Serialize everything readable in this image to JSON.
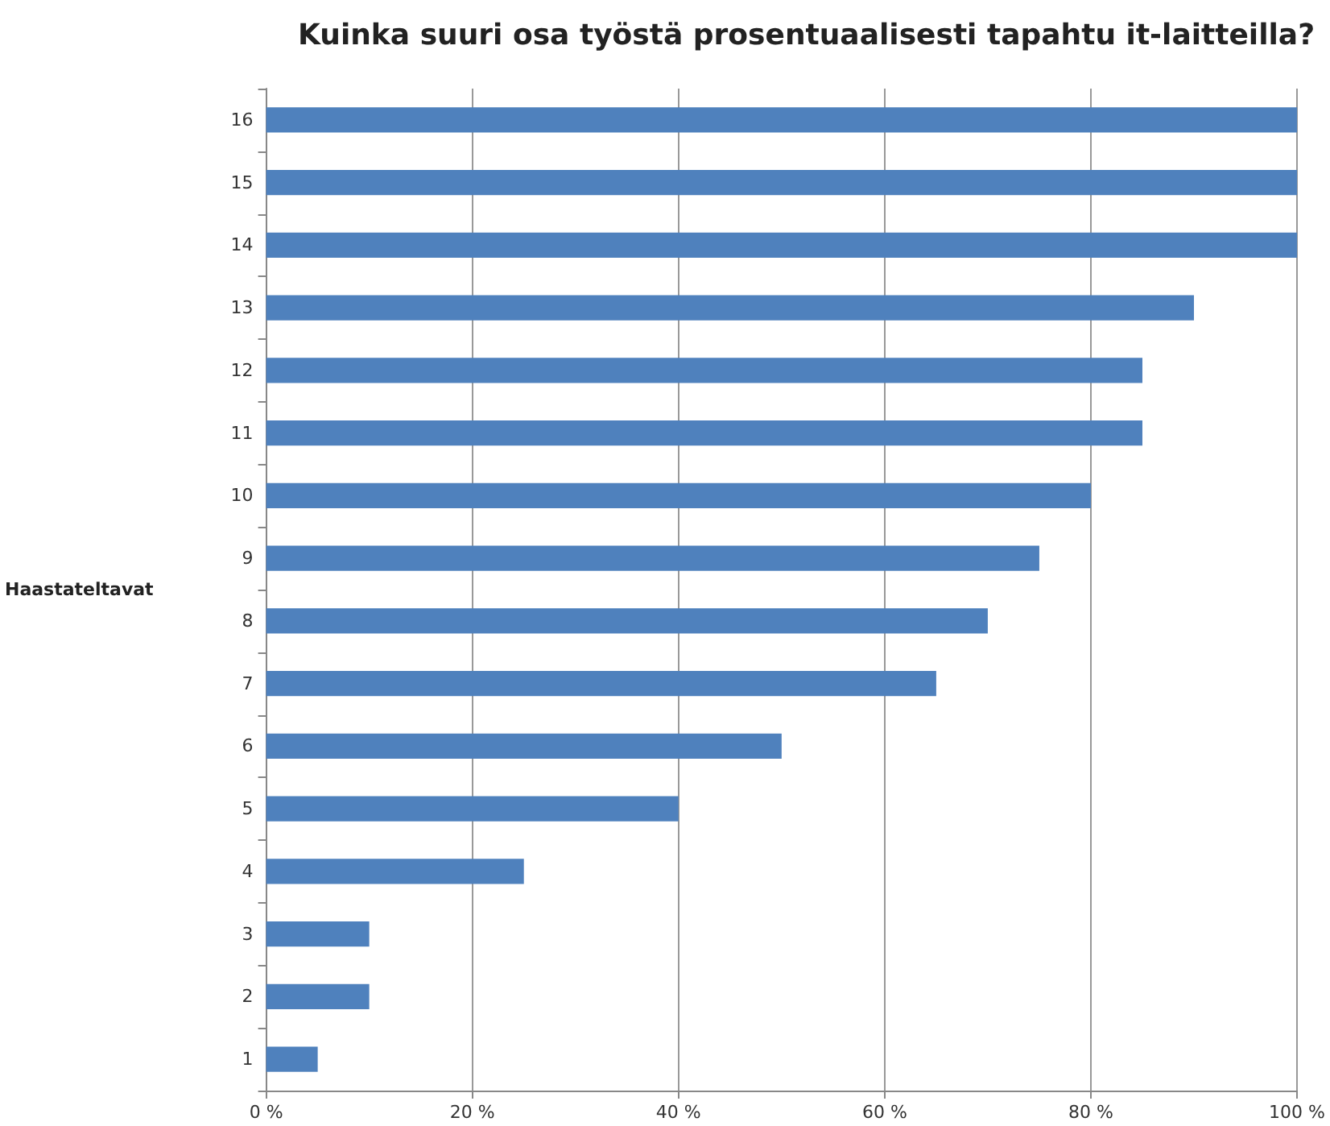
{
  "chart_data": {
    "type": "bar",
    "orientation": "horizontal",
    "title": "Kuinka suuri osa työstä prosentuaalisesti tapahtu it-laitteilla?",
    "ylabel": "Haastateltavat",
    "categories": [
      "16",
      "15",
      "14",
      "13",
      "12",
      "11",
      "10",
      "9",
      "8",
      "7",
      "6",
      "5",
      "4",
      "3",
      "2",
      "1"
    ],
    "values": [
      100,
      100,
      100,
      90,
      85,
      85,
      80,
      75,
      70,
      65,
      50,
      40,
      25,
      10,
      10,
      5
    ],
    "color": "#4f81bd",
    "xlim": [
      0,
      100
    ],
    "xticks": [
      {
        "value": 0,
        "label": "0 %"
      },
      {
        "value": 20,
        "label": "20 %"
      },
      {
        "value": 40,
        "label": "40 %"
      },
      {
        "value": 60,
        "label": "60 %"
      },
      {
        "value": 80,
        "label": "80 %"
      },
      {
        "value": 100,
        "label": "100 %"
      }
    ],
    "grid": "x"
  }
}
